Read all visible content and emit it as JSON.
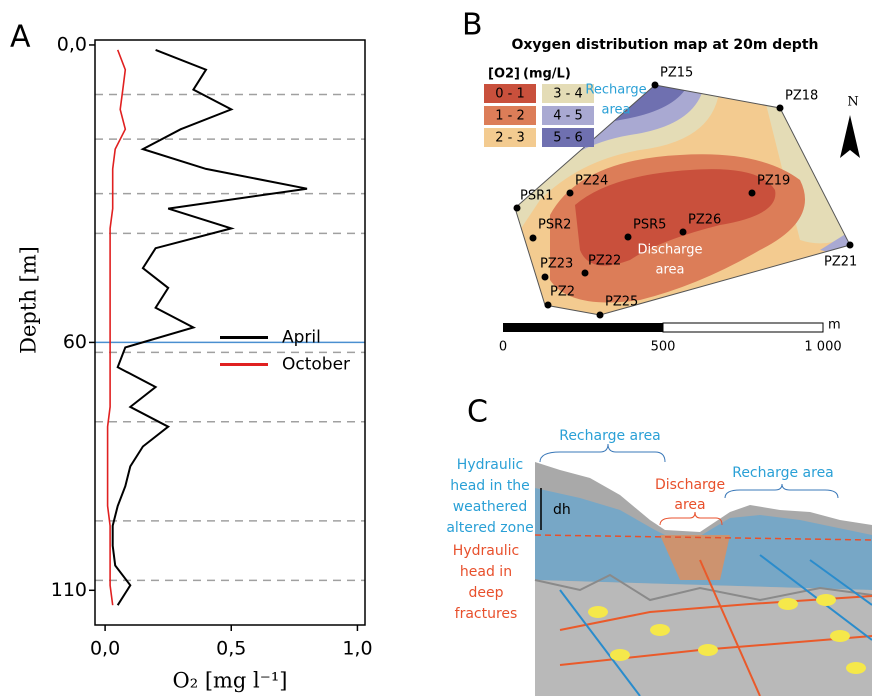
{
  "chart_data": {
    "type": "line",
    "panel_label": "A",
    "y_axis_label": "Depth [m]",
    "x_axis_label": "O₂ [mg l⁻¹]",
    "depth": [
      1,
      5,
      9,
      13,
      17,
      21,
      25,
      29,
      33,
      37,
      41,
      45,
      49,
      53,
      57,
      61,
      65,
      69,
      73,
      77,
      81,
      85,
      89,
      93,
      97,
      101,
      105,
      109,
      113
    ],
    "series": [
      {
        "name": "April",
        "color": "#000000",
        "values": [
          0.2,
          0.4,
          0.35,
          0.5,
          0.3,
          0.15,
          0.4,
          0.8,
          0.25,
          0.5,
          0.2,
          0.15,
          0.25,
          0.2,
          0.35,
          0.08,
          0.05,
          0.2,
          0.1,
          0.25,
          0.15,
          0.1,
          0.08,
          0.05,
          0.03,
          0.03,
          0.04,
          0.1,
          0.05
        ]
      },
      {
        "name": "October",
        "color": "#e02020",
        "values": [
          0.05,
          0.08,
          0.07,
          0.06,
          0.08,
          0.04,
          0.03,
          0.03,
          0.03,
          0.02,
          0.02,
          0.02,
          0.02,
          0.02,
          0.02,
          0.02,
          0.02,
          0.02,
          0.02,
          0.01,
          0.01,
          0.01,
          0.01,
          0.01,
          0.02,
          0.02,
          0.02,
          0.02,
          0.03
        ]
      }
    ],
    "xlim": [
      -0.04,
      1.03
    ],
    "ylim": [
      -1,
      117
    ],
    "y_inverted": true,
    "xticks": [
      {
        "value": 0,
        "label": "0,0"
      },
      {
        "value": 0.5,
        "label": "0,5"
      },
      {
        "value": 1,
        "label": "1,0"
      }
    ],
    "yticks": [
      {
        "value": 0,
        "label": "0,0"
      },
      60,
      110
    ],
    "hlines": [
      10,
      19,
      30,
      38,
      62,
      76,
      96,
      108
    ],
    "hline_color": "#a0a0a0",
    "highlight_line": {
      "value": 60,
      "color": "#4a8fd0"
    },
    "legend": "center-right"
  },
  "map": {
    "panel_label": "B",
    "title": "Oxygen distribution map at 20m depth",
    "legend_title": [
      "[O2]",
      "(mg/L)"
    ],
    "classes": [
      {
        "label": "0 - 1",
        "color": "#c9503c"
      },
      {
        "label": "1 - 2",
        "color": "#dc7d58"
      },
      {
        "label": "2 - 3",
        "color": "#f3cb90"
      },
      {
        "label": "3 - 4",
        "color": "#e4dcb6"
      },
      {
        "label": "4 - 5",
        "color": "#a9a9d2"
      },
      {
        "label": "5 - 6",
        "color": "#6f70b0"
      }
    ],
    "points": [
      "PZ15",
      "PZ18",
      "PZ19",
      "PZ24",
      "PSR1",
      "PSR2",
      "PSR5",
      "PZ26",
      "PZ21",
      "PZ23",
      "PZ22",
      "PZ2",
      "PZ25"
    ],
    "recharge_label": [
      "Recharge",
      "area"
    ],
    "discharge_label": [
      "Discharge",
      "area"
    ],
    "north": "N",
    "scale_labels": [
      "0",
      "500",
      "1 000"
    ],
    "scale_unit": "m"
  },
  "diagram": {
    "panel_label": "C",
    "recharge_left": "Recharge area",
    "recharge_right": "Recharge area",
    "discharge": [
      "Discharge",
      "area"
    ],
    "weathered_head": [
      "Hydraulic",
      "head in the",
      "weathered",
      "altered zone"
    ],
    "deep_head": [
      "Hydraulic",
      "head in",
      "deep",
      "fractures"
    ],
    "dh": "dh"
  }
}
